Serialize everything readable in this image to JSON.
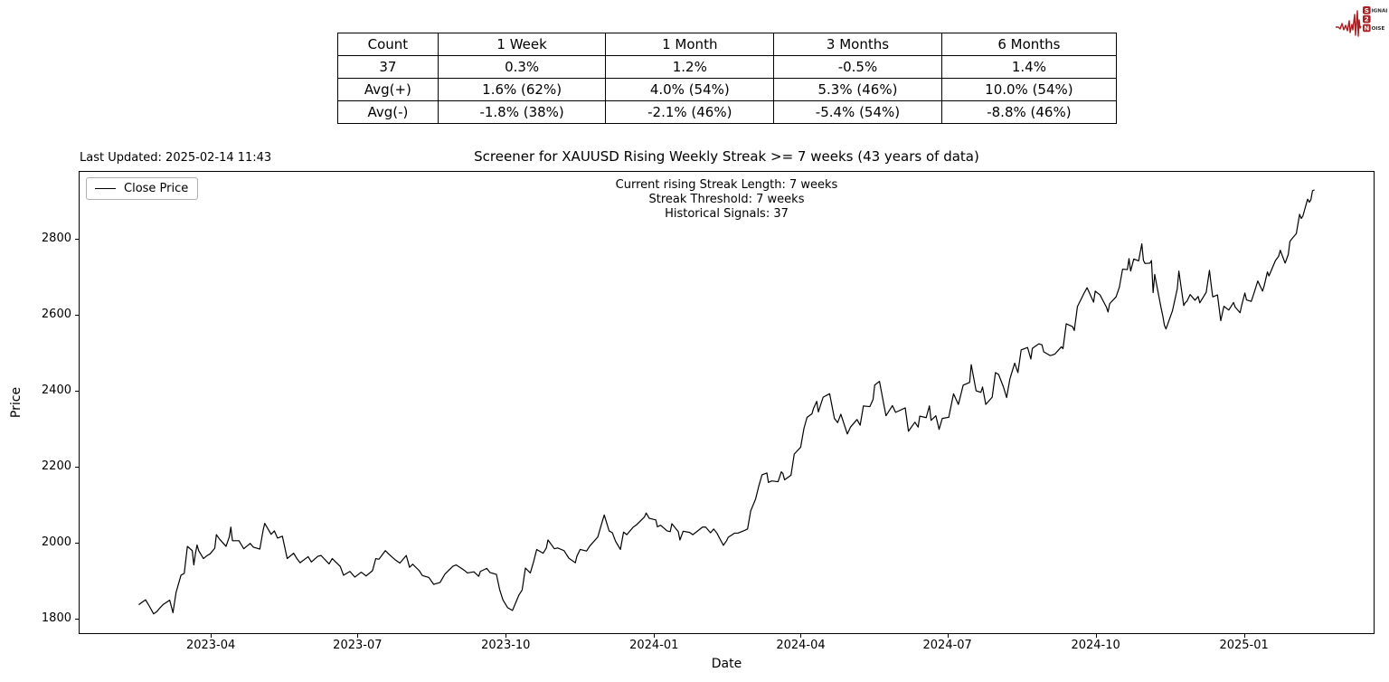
{
  "logo": {
    "color": "#a81e22",
    "text_color": "#2b2b2b",
    "line1_badge": "S",
    "line1_rest": "IGNAL",
    "line2_badge": "2",
    "line2_rest": "",
    "line3_badge": "N",
    "line3_rest": "OISE"
  },
  "stats_table": {
    "columns": [
      "Count",
      "1 Week",
      "1 Month",
      "3 Months",
      "6 Months"
    ],
    "rows": [
      [
        "37",
        "0.3%",
        "1.2%",
        "-0.5%",
        "1.4%"
      ],
      [
        "Avg(+)",
        "1.6% (62%)",
        "4.0% (54%)",
        "5.3% (46%)",
        "10.0% (54%)"
      ],
      [
        "Avg(-)",
        "-1.8% (38%)",
        "-2.1% (46%)",
        "-5.4% (54%)",
        "-8.8% (46%)"
      ]
    ]
  },
  "figure": {
    "last_updated": "Last Updated: 2025-02-14 11:43",
    "title": "Screener for XAUUSD Rising Weekly Streak >= 7 weeks (43 years of data)",
    "annotations": [
      "Current rising Streak Length: 7 weeks",
      "Streak Threshold: 7 weeks",
      "Historical Signals: 37"
    ],
    "legend_label": "Close Price",
    "xlabel": "Date",
    "ylabel": "Price"
  },
  "chart_data": {
    "type": "line",
    "title": "Screener for XAUUSD Rising Weekly Streak >= 7 weeks (43 years of data)",
    "xlabel": "Date",
    "ylabel": "Price",
    "grid": false,
    "legend_position": "upper-left",
    "x_unit": "days since 2023-02-15",
    "xlim": [
      -37,
      767
    ],
    "ylim": [
      1760,
      2978
    ],
    "y_ticks": [
      1800,
      2000,
      2200,
      2400,
      2600,
      2800
    ],
    "x_ticks": [
      {
        "day": 45,
        "label": "2023-04"
      },
      {
        "day": 136,
        "label": "2023-07"
      },
      {
        "day": 228,
        "label": "2023-10"
      },
      {
        "day": 320,
        "label": "2024-01"
      },
      {
        "day": 411,
        "label": "2024-04"
      },
      {
        "day": 502,
        "label": "2024-07"
      },
      {
        "day": 594,
        "label": "2024-10"
      },
      {
        "day": 686,
        "label": "2025-01"
      }
    ],
    "series": [
      {
        "name": "Close Price",
        "color": "#000000",
        "points": [
          [
            0,
            1836
          ],
          [
            2,
            1842
          ],
          [
            4,
            1848
          ],
          [
            6,
            1834
          ],
          [
            9,
            1811
          ],
          [
            11,
            1817
          ],
          [
            13,
            1827
          ],
          [
            15,
            1836
          ],
          [
            19,
            1847
          ],
          [
            21,
            1814
          ],
          [
            23,
            1868
          ],
          [
            26,
            1913
          ],
          [
            28,
            1918
          ],
          [
            30,
            1989
          ],
          [
            33,
            1978
          ],
          [
            34,
            1940
          ],
          [
            35,
            1970
          ],
          [
            36,
            1993
          ],
          [
            37,
            1978
          ],
          [
            40,
            1957
          ],
          [
            42,
            1964
          ],
          [
            44,
            1969
          ],
          [
            47,
            1984
          ],
          [
            48,
            2020
          ],
          [
            50,
            2008
          ],
          [
            54,
            1989
          ],
          [
            56,
            2014
          ],
          [
            57,
            2040
          ],
          [
            58,
            2004
          ],
          [
            62,
            2004
          ],
          [
            65,
            1983
          ],
          [
            69,
            1997
          ],
          [
            71,
            1987
          ],
          [
            75,
            1982
          ],
          [
            77,
            2031
          ],
          [
            78,
            2050
          ],
          [
            82,
            2021
          ],
          [
            84,
            2030
          ],
          [
            86,
            2011
          ],
          [
            89,
            2016
          ],
          [
            92,
            1957
          ],
          [
            96,
            1971
          ],
          [
            98,
            1957
          ],
          [
            100,
            1946
          ],
          [
            105,
            1962
          ],
          [
            107,
            1948
          ],
          [
            111,
            1963
          ],
          [
            113,
            1965
          ],
          [
            118,
            1943
          ],
          [
            120,
            1957
          ],
          [
            125,
            1936
          ],
          [
            127,
            1913
          ],
          [
            131,
            1923
          ],
          [
            134,
            1908
          ],
          [
            138,
            1921
          ],
          [
            141,
            1911
          ],
          [
            145,
            1925
          ],
          [
            147,
            1957
          ],
          [
            149,
            1955
          ],
          [
            153,
            1978
          ],
          [
            155,
            1969
          ],
          [
            159,
            1954
          ],
          [
            162,
            1945
          ],
          [
            166,
            1965
          ],
          [
            168,
            1934
          ],
          [
            170,
            1942
          ],
          [
            174,
            1925
          ],
          [
            176,
            1912
          ],
          [
            180,
            1907
          ],
          [
            183,
            1889
          ],
          [
            187,
            1894
          ],
          [
            190,
            1916
          ],
          [
            195,
            1937
          ],
          [
            197,
            1940
          ],
          [
            202,
            1926
          ],
          [
            204,
            1919
          ],
          [
            208,
            1922
          ],
          [
            211,
            1910
          ],
          [
            212,
            1923
          ],
          [
            216,
            1931
          ],
          [
            218,
            1920
          ],
          [
            222,
            1915
          ],
          [
            224,
            1875
          ],
          [
            226,
            1848
          ],
          [
            229,
            1827
          ],
          [
            232,
            1820
          ],
          [
            236,
            1861
          ],
          [
            238,
            1874
          ],
          [
            240,
            1932
          ],
          [
            243,
            1919
          ],
          [
            245,
            1947
          ],
          [
            247,
            1981
          ],
          [
            251,
            1971
          ],
          [
            253,
            1985
          ],
          [
            254,
            2006
          ],
          [
            258,
            1983
          ],
          [
            260,
            1985
          ],
          [
            264,
            1978
          ],
          [
            267,
            1958
          ],
          [
            271,
            1946
          ],
          [
            272,
            1963
          ],
          [
            274,
            1981
          ],
          [
            278,
            1977
          ],
          [
            280,
            1990
          ],
          [
            285,
            2014
          ],
          [
            287,
            2044
          ],
          [
            289,
            2072
          ],
          [
            292,
            2030
          ],
          [
            294,
            2025
          ],
          [
            296,
            2003
          ],
          [
            299,
            1981
          ],
          [
            301,
            2027
          ],
          [
            303,
            2020
          ],
          [
            307,
            2040
          ],
          [
            309,
            2046
          ],
          [
            314,
            2067
          ],
          [
            315,
            2077
          ],
          [
            317,
            2063
          ],
          [
            321,
            2059
          ],
          [
            322,
            2041
          ],
          [
            324,
            2045
          ],
          [
            328,
            2030
          ],
          [
            330,
            2028
          ],
          [
            331,
            2049
          ],
          [
            335,
            2028
          ],
          [
            336,
            2006
          ],
          [
            338,
            2029
          ],
          [
            342,
            2026
          ],
          [
            344,
            2020
          ],
          [
            348,
            2033
          ],
          [
            350,
            2040
          ],
          [
            352,
            2040
          ],
          [
            355,
            2025
          ],
          [
            357,
            2035
          ],
          [
            359,
            2024
          ],
          [
            363,
            1992
          ],
          [
            365,
            2004
          ],
          [
            366,
            2013
          ],
          [
            370,
            2024
          ],
          [
            372,
            2024
          ],
          [
            376,
            2031
          ],
          [
            378,
            2035
          ],
          [
            380,
            2083
          ],
          [
            383,
            2114
          ],
          [
            385,
            2148
          ],
          [
            387,
            2178
          ],
          [
            390,
            2183
          ],
          [
            391,
            2158
          ],
          [
            393,
            2162
          ],
          [
            397,
            2160
          ],
          [
            399,
            2186
          ],
          [
            400,
            2181
          ],
          [
            401,
            2165
          ],
          [
            405,
            2177
          ],
          [
            407,
            2233
          ],
          [
            411,
            2251
          ],
          [
            413,
            2300
          ],
          [
            415,
            2330
          ],
          [
            418,
            2339
          ],
          [
            419,
            2353
          ],
          [
            421,
            2372
          ],
          [
            422,
            2344
          ],
          [
            425,
            2383
          ],
          [
            429,
            2392
          ],
          [
            432,
            2327
          ],
          [
            434,
            2316
          ],
          [
            436,
            2338
          ],
          [
            440,
            2286
          ],
          [
            442,
            2304
          ],
          [
            446,
            2324
          ],
          [
            448,
            2309
          ],
          [
            450,
            2360
          ],
          [
            454,
            2358
          ],
          [
            456,
            2377
          ],
          [
            457,
            2415
          ],
          [
            460,
            2425
          ],
          [
            462,
            2379
          ],
          [
            464,
            2334
          ],
          [
            468,
            2361
          ],
          [
            470,
            2343
          ],
          [
            474,
            2351
          ],
          [
            476,
            2355
          ],
          [
            478,
            2293
          ],
          [
            482,
            2317
          ],
          [
            484,
            2304
          ],
          [
            485,
            2333
          ],
          [
            489,
            2329
          ],
          [
            491,
            2360
          ],
          [
            492,
            2322
          ],
          [
            495,
            2334
          ],
          [
            497,
            2298
          ],
          [
            499,
            2327
          ],
          [
            503,
            2330
          ],
          [
            506,
            2392
          ],
          [
            509,
            2364
          ],
          [
            512,
            2415
          ],
          [
            516,
            2422
          ],
          [
            517,
            2469
          ],
          [
            520,
            2400
          ],
          [
            523,
            2396
          ],
          [
            524,
            2410
          ],
          [
            526,
            2364
          ],
          [
            530,
            2383
          ],
          [
            532,
            2448
          ],
          [
            534,
            2443
          ],
          [
            537,
            2410
          ],
          [
            539,
            2382
          ],
          [
            541,
            2431
          ],
          [
            544,
            2473
          ],
          [
            546,
            2448
          ],
          [
            548,
            2508
          ],
          [
            552,
            2514
          ],
          [
            554,
            2484
          ],
          [
            555,
            2512
          ],
          [
            559,
            2524
          ],
          [
            561,
            2521
          ],
          [
            562,
            2503
          ],
          [
            566,
            2493
          ],
          [
            567,
            2494
          ],
          [
            569,
            2497
          ],
          [
            573,
            2516
          ],
          [
            574,
            2511
          ],
          [
            576,
            2577
          ],
          [
            580,
            2569
          ],
          [
            581,
            2559
          ],
          [
            583,
            2622
          ],
          [
            587,
            2657
          ],
          [
            589,
            2672
          ],
          [
            593,
            2634
          ],
          [
            594,
            2663
          ],
          [
            597,
            2653
          ],
          [
            601,
            2621
          ],
          [
            602,
            2608
          ],
          [
            603,
            2630
          ],
          [
            607,
            2648
          ],
          [
            609,
            2673
          ],
          [
            611,
            2721
          ],
          [
            614,
            2720
          ],
          [
            615,
            2749
          ],
          [
            616,
            2716
          ],
          [
            618,
            2748
          ],
          [
            621,
            2743
          ],
          [
            623,
            2788
          ],
          [
            624,
            2744
          ],
          [
            625,
            2736
          ],
          [
            628,
            2737
          ],
          [
            629,
            2744
          ],
          [
            630,
            2659
          ],
          [
            631,
            2707
          ],
          [
            632,
            2684
          ],
          [
            635,
            2618
          ],
          [
            636,
            2598
          ],
          [
            637,
            2573
          ],
          [
            638,
            2563
          ],
          [
            642,
            2611
          ],
          [
            644,
            2650
          ],
          [
            645,
            2670
          ],
          [
            646,
            2716
          ],
          [
            649,
            2625
          ],
          [
            650,
            2633
          ],
          [
            651,
            2636
          ],
          [
            653,
            2654
          ],
          [
            656,
            2639
          ],
          [
            658,
            2649
          ],
          [
            659,
            2632
          ],
          [
            663,
            2660
          ],
          [
            665,
            2718
          ],
          [
            666,
            2681
          ],
          [
            667,
            2648
          ],
          [
            670,
            2653
          ],
          [
            672,
            2585
          ],
          [
            674,
            2623
          ],
          [
            677,
            2613
          ],
          [
            680,
            2633
          ],
          [
            681,
            2621
          ],
          [
            684,
            2606
          ],
          [
            685,
            2625
          ],
          [
            687,
            2658
          ],
          [
            688,
            2640
          ],
          [
            691,
            2636
          ],
          [
            693,
            2662
          ],
          [
            695,
            2690
          ],
          [
            698,
            2663
          ],
          [
            699,
            2677
          ],
          [
            701,
            2714
          ],
          [
            702,
            2703
          ],
          [
            706,
            2744
          ],
          [
            708,
            2755
          ],
          [
            709,
            2771
          ],
          [
            712,
            2737
          ],
          [
            714,
            2760
          ],
          [
            715,
            2794
          ],
          [
            716,
            2800
          ],
          [
            719,
            2815
          ],
          [
            721,
            2866
          ],
          [
            722,
            2855
          ],
          [
            723,
            2861
          ],
          [
            726,
            2906
          ],
          [
            727,
            2898
          ],
          [
            728,
            2904
          ],
          [
            729,
            2928
          ],
          [
            730,
            2930
          ]
        ]
      }
    ]
  }
}
